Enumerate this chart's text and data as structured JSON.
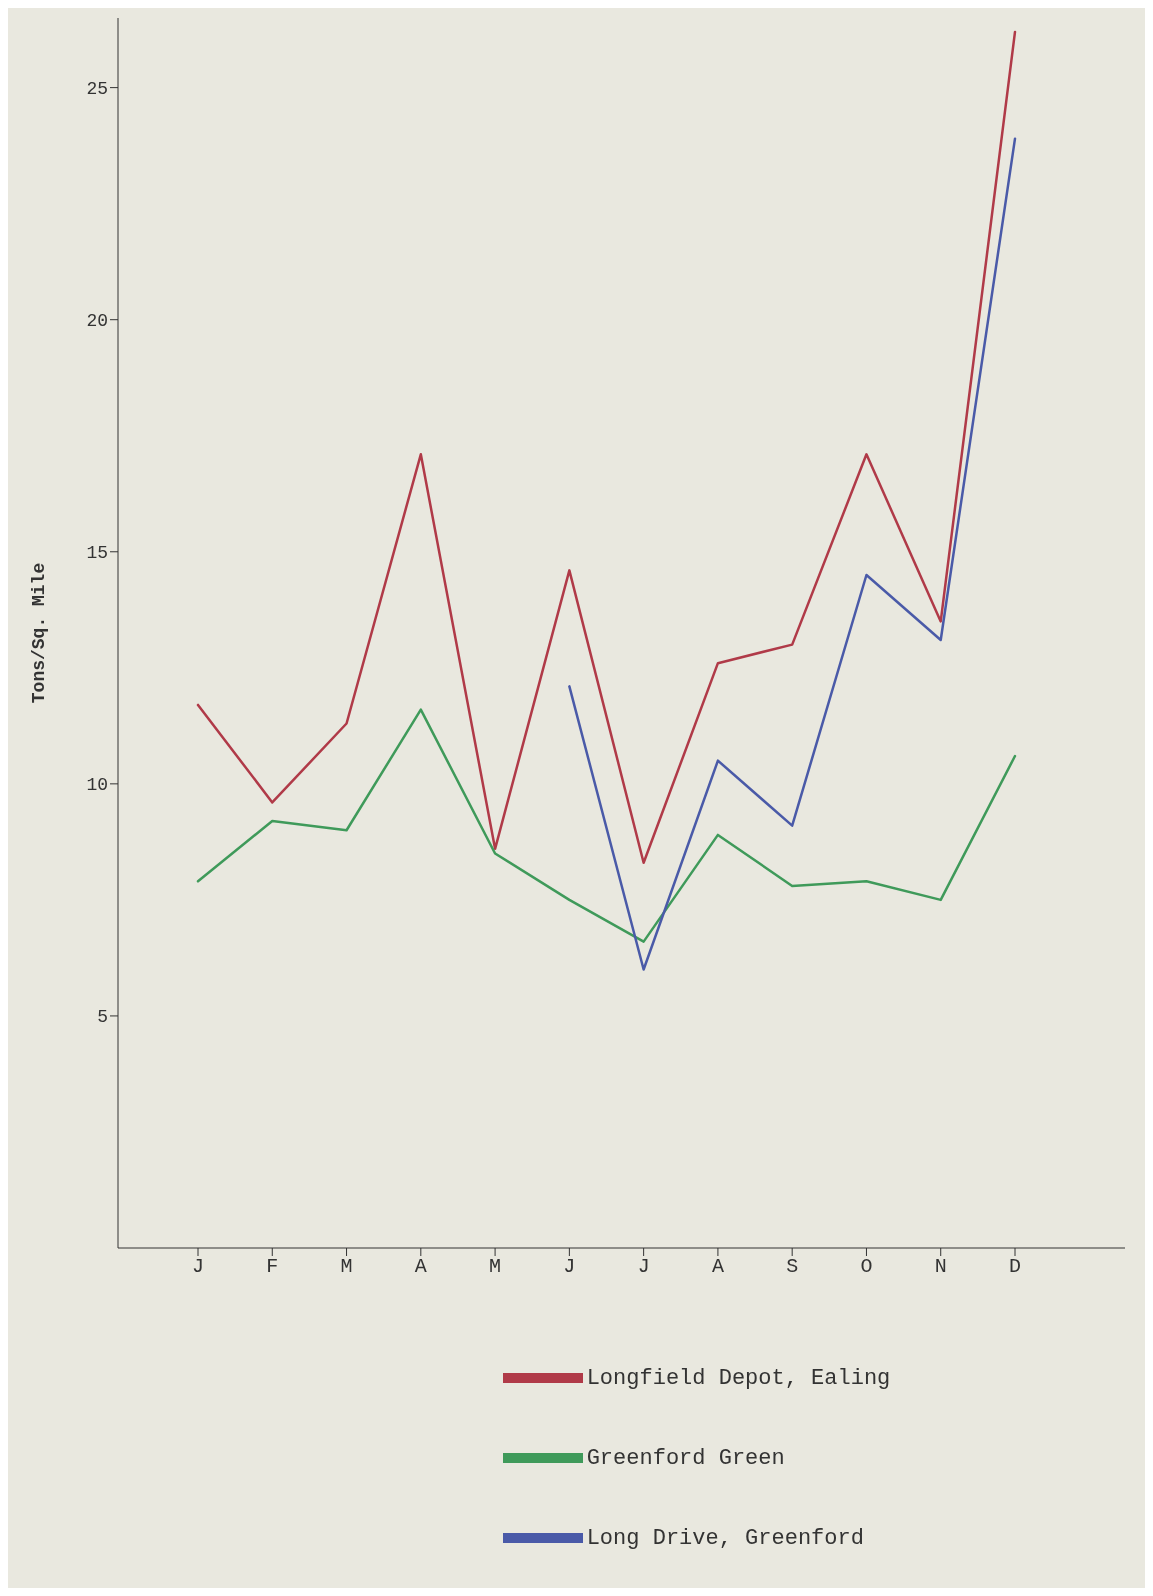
{
  "chart_data": {
    "type": "line",
    "ylabel": "Tons/Sq. Mile",
    "categories": [
      "J",
      "F",
      "M",
      "A",
      "M",
      "J",
      "J",
      "A",
      "S",
      "O",
      "N",
      "D"
    ],
    "series": [
      {
        "name": "Longfield Depot, Ealing",
        "color": "#b03a48",
        "values": [
          11.7,
          9.6,
          11.3,
          17.1,
          8.6,
          14.6,
          8.3,
          12.6,
          13.0,
          17.1,
          13.5,
          26.2
        ]
      },
      {
        "name": "Greenford Green",
        "color": "#3f9a5a",
        "values": [
          7.9,
          9.2,
          9.0,
          11.6,
          8.5,
          7.5,
          6.6,
          8.9,
          7.8,
          7.9,
          7.5,
          10.6
        ]
      },
      {
        "name": "Long Drive, Greenford",
        "color": "#4a5aa8",
        "values": [
          null,
          null,
          null,
          null,
          null,
          12.1,
          6.0,
          10.5,
          9.1,
          14.5,
          13.1,
          23.9
        ]
      }
    ],
    "ylim": [
      0,
      26.5
    ],
    "yticks": [
      5,
      10,
      15,
      20,
      25
    ],
    "grid": false,
    "legend": "bottom",
    "marker": "none",
    "line_style": "solid"
  }
}
